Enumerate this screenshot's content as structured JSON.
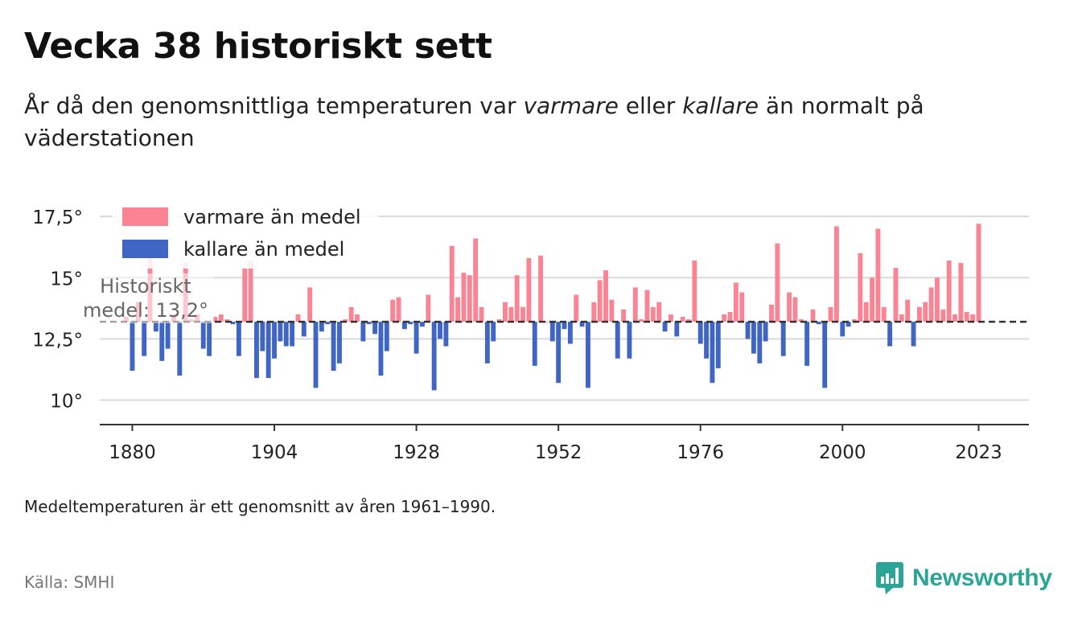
{
  "header": {
    "title": "Vecka 38 historiskt sett",
    "subtitle_pre": "År då den genomsnittliga temperaturen var ",
    "subtitle_warm": "varmare",
    "subtitle_mid": " eller ",
    "subtitle_cold": "kallare",
    "subtitle_post": " än normalt på väderstationen"
  },
  "footer": {
    "note": "Medeltemperaturen är ett genomsnitt av åren 1961–1990.",
    "source": "Källa: SMHI",
    "brand": "Newsworthy",
    "brand_icon": "newsworthy-logo-icon"
  },
  "colors": {
    "warm": "#fb8494",
    "cold": "#3f66c4",
    "brand": "#2aa597",
    "mean_line": "#333333"
  },
  "chart_data": {
    "type": "bar",
    "baseline": 13.2,
    "baseline_label": "Historiskt medel: 13,2°",
    "legend": [
      {
        "name": "varmare än medel",
        "color": "#fb8494"
      },
      {
        "name": "kallare än medel",
        "color": "#3f66c4"
      }
    ],
    "legend_position": "top-left",
    "ylim": [
      9.0,
      17.9
    ],
    "yticks": [
      {
        "value": 10,
        "label": "10°"
      },
      {
        "value": 12.5,
        "label": "12,5°"
      },
      {
        "value": 15,
        "label": "15°"
      },
      {
        "value": 17.5,
        "label": "17,5°"
      }
    ],
    "xlim": [
      1874.5,
      2031.5
    ],
    "xticks": [
      {
        "value": 1880,
        "label": "1880"
      },
      {
        "value": 1904,
        "label": "1904"
      },
      {
        "value": 1928,
        "label": "1928"
      },
      {
        "value": 1952,
        "label": "1952"
      },
      {
        "value": 1976,
        "label": "1976"
      },
      {
        "value": 2000,
        "label": "2000"
      },
      {
        "value": 2023,
        "label": "2023"
      }
    ],
    "grid": true,
    "years": [
      1879,
      1880,
      1881,
      1882,
      1883,
      1884,
      1885,
      1886,
      1887,
      1888,
      1889,
      1890,
      1891,
      1892,
      1893,
      1894,
      1895,
      1896,
      1897,
      1898,
      1899,
      1900,
      1901,
      1902,
      1903,
      1904,
      1905,
      1906,
      1907,
      1908,
      1909,
      1910,
      1911,
      1912,
      1913,
      1914,
      1915,
      1916,
      1917,
      1918,
      1919,
      1920,
      1921,
      1922,
      1923,
      1924,
      1925,
      1926,
      1927,
      1928,
      1929,
      1930,
      1931,
      1932,
      1933,
      1934,
      1935,
      1936,
      1937,
      1938,
      1939,
      1940,
      1941,
      1942,
      1943,
      1944,
      1945,
      1946,
      1947,
      1948,
      1949,
      1950,
      1951,
      1952,
      1953,
      1954,
      1955,
      1956,
      1957,
      1958,
      1959,
      1960,
      1961,
      1962,
      1963,
      1964,
      1965,
      1966,
      1967,
      1968,
      1969,
      1970,
      1971,
      1972,
      1973,
      1974,
      1975,
      1976,
      1977,
      1978,
      1979,
      1980,
      1981,
      1982,
      1983,
      1984,
      1985,
      1986,
      1987,
      1988,
      1989,
      1990,
      1991,
      1992,
      1993,
      1994,
      1995,
      1996,
      1997,
      1998,
      1999,
      2000,
      2001,
      2002,
      2003,
      2004,
      2005,
      2006,
      2007,
      2008,
      2009,
      2010,
      2011,
      2012,
      2013,
      2014,
      2015,
      2016,
      2017,
      2018,
      2019,
      2020,
      2021,
      2022,
      2023
    ],
    "values": [
      13.4,
      11.2,
      14.0,
      11.8,
      16.2,
      12.8,
      11.6,
      12.1,
      13.5,
      11.0,
      15.6,
      13.3,
      13.5,
      12.1,
      11.8,
      13.4,
      13.5,
      13.3,
      13.1,
      11.8,
      15.4,
      15.7,
      10.9,
      12.0,
      10.9,
      11.7,
      12.4,
      12.2,
      12.2,
      13.5,
      12.6,
      14.6,
      10.5,
      12.8,
      13.1,
      11.2,
      11.5,
      13.3,
      13.8,
      13.5,
      12.4,
      13.1,
      12.7,
      11.0,
      12.0,
      14.1,
      14.2,
      12.9,
      13.1,
      11.9,
      13.0,
      14.3,
      10.4,
      12.5,
      12.2,
      16.3,
      14.2,
      15.2,
      15.1,
      16.6,
      13.8,
      11.5,
      12.4,
      13.3,
      14.0,
      13.8,
      15.1,
      13.8,
      15.8,
      11.4,
      15.9,
      13.2,
      12.4,
      10.7,
      12.9,
      12.3,
      14.3,
      13.0,
      10.5,
      14.0,
      14.9,
      15.3,
      14.1,
      11.7,
      13.7,
      11.7,
      14.6,
      13.3,
      14.5,
      13.8,
      14.0,
      12.8,
      13.5,
      12.6,
      13.4,
      13.3,
      15.7,
      12.3,
      11.7,
      10.7,
      11.3,
      13.5,
      13.6,
      14.8,
      14.4,
      12.5,
      11.9,
      11.5,
      12.4,
      13.9,
      16.4,
      11.8,
      14.4,
      14.2,
      13.3,
      11.4,
      13.7,
      13.1,
      10.5,
      13.8,
      17.1,
      12.6,
      13.0,
      13.3,
      16.0,
      14.0,
      15.0,
      17.0,
      13.8,
      12.2,
      15.4,
      13.5,
      14.1,
      12.2,
      13.8,
      14.0,
      14.6,
      15.0,
      13.7,
      15.7,
      13.5,
      15.6,
      13.6,
      13.5,
      17.2
    ]
  }
}
